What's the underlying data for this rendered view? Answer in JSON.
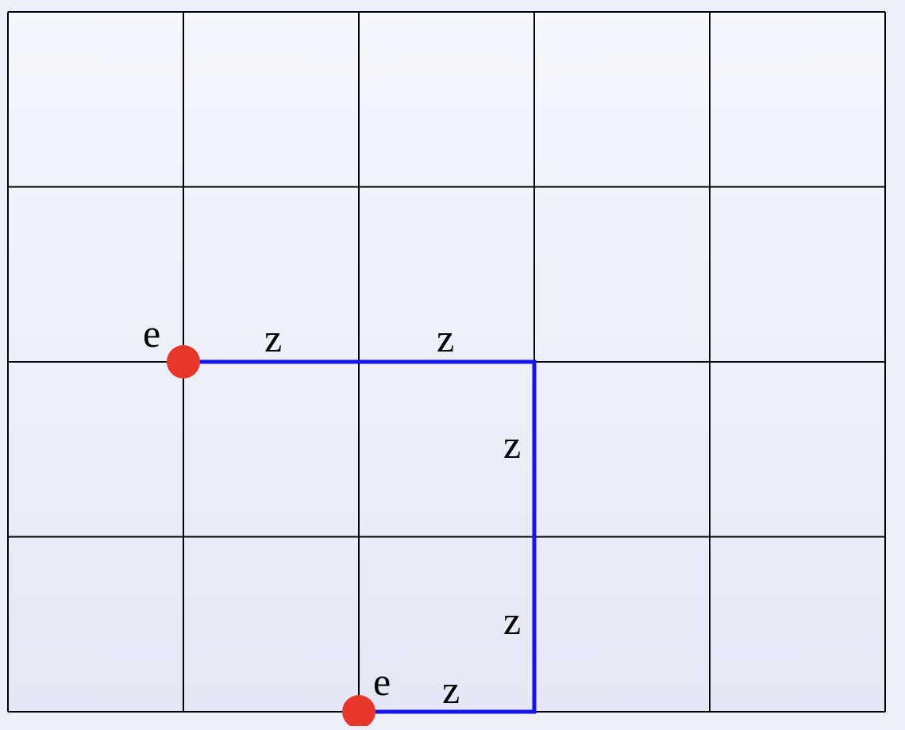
{
  "diagram": {
    "grid": {
      "columns": 5,
      "rows": 4,
      "background_top": "#f5f7fd",
      "background_bottom": "#e5e7f6",
      "line_color": "#000000"
    },
    "path": {
      "color": "#1414f0",
      "vertices": [
        [
          1,
          2
        ],
        [
          3,
          2
        ],
        [
          3,
          4
        ],
        [
          2,
          4
        ]
      ]
    },
    "nodes": [
      {
        "id": "node-start",
        "label": "e",
        "grid": [
          1,
          2
        ],
        "color": "#e8372a"
      },
      {
        "id": "node-end",
        "label": "e",
        "grid": [
          2,
          4
        ],
        "color": "#e8372a"
      }
    ],
    "edge_labels": [
      {
        "id": "edge-label-1",
        "label": "z"
      },
      {
        "id": "edge-label-2",
        "label": "z"
      },
      {
        "id": "edge-label-3",
        "label": "z"
      },
      {
        "id": "edge-label-4",
        "label": "z"
      },
      {
        "id": "edge-label-5",
        "label": "z"
      }
    ]
  }
}
